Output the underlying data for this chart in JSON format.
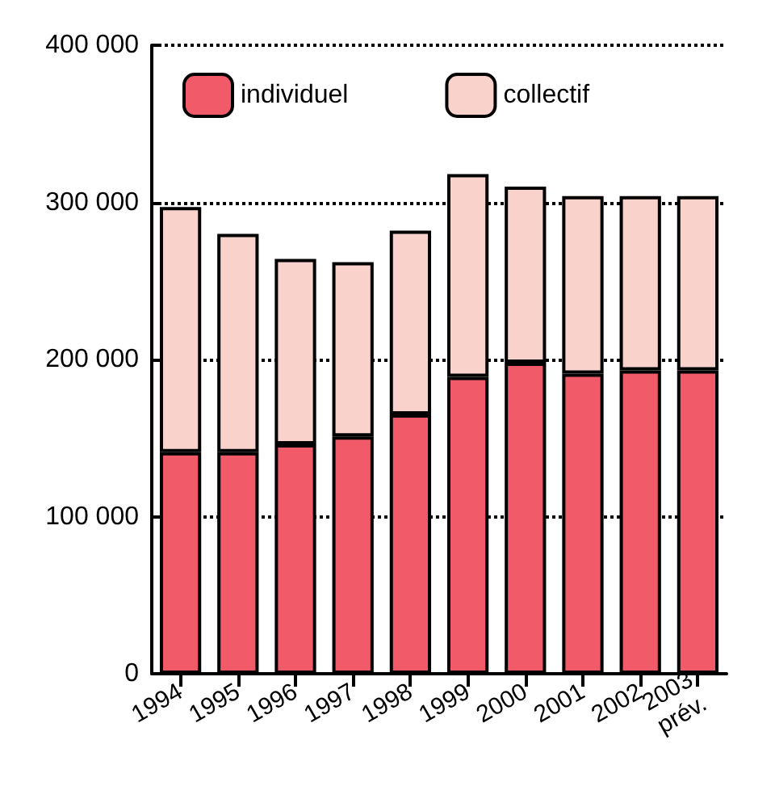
{
  "chart_data": {
    "type": "bar",
    "stacked": true,
    "categories": [
      "1994",
      "1995",
      "1996",
      "1997",
      "1998",
      "1999",
      "2000",
      "2001",
      "2002",
      "2003\nprév."
    ],
    "series": [
      {
        "name": "individuel",
        "color": "#f05a69",
        "values": [
          141000,
          141000,
          146000,
          151000,
          165000,
          189000,
          198000,
          191000,
          193000,
          193000
        ]
      },
      {
        "name": "collectif",
        "color": "#fad2cc",
        "values": [
          156000,
          139000,
          118000,
          111000,
          117000,
          129000,
          112000,
          113000,
          111000,
          111000
        ]
      }
    ],
    "ylim": [
      0,
      400000
    ],
    "yticks": [
      {
        "value": 0,
        "label": "0"
      },
      {
        "value": 100000,
        "label": "100 000"
      },
      {
        "value": 200000,
        "label": "200 000"
      },
      {
        "value": 300000,
        "label": "300 000"
      },
      {
        "value": 400000,
        "label": "400 000"
      }
    ],
    "grid": "y",
    "line_style": "dotted",
    "legend": "top left"
  }
}
